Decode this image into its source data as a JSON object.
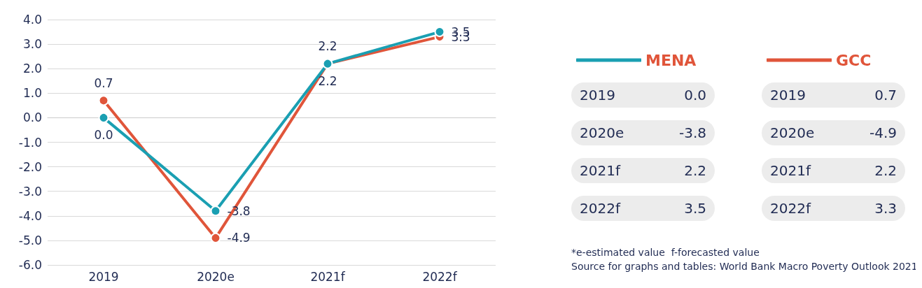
{
  "chart_data": {
    "type": "line",
    "categories": [
      "2019",
      "2020e",
      "2021f",
      "2022f"
    ],
    "series": [
      {
        "name": "MENA",
        "color": "#1a9fb2",
        "values": [
          0.0,
          -3.8,
          2.2,
          3.5
        ],
        "value_labels": [
          "0.0",
          "-3.8",
          "2.2",
          "3.5"
        ]
      },
      {
        "name": "GCC",
        "color": "#e0553a",
        "values": [
          0.7,
          -4.9,
          2.2,
          3.3
        ],
        "value_labels": [
          "0.7",
          "-4.9",
          "2.2",
          "3.3"
        ]
      }
    ],
    "ylim": [
      -6,
      4
    ],
    "yticks": [
      {
        "value": -6,
        "label": "-6.0"
      },
      {
        "value": -5,
        "label": "-5.0"
      },
      {
        "value": -4,
        "label": "-4.0"
      },
      {
        "value": -3,
        "label": "-3.0"
      },
      {
        "value": -2,
        "label": "-2.0"
      },
      {
        "value": -1,
        "label": "-1.0"
      },
      {
        "value": 0,
        "label": "0.0"
      },
      {
        "value": 1,
        "label": "1.0"
      },
      {
        "value": 2,
        "label": "2.0"
      },
      {
        "value": 3,
        "label": "3.0"
      },
      {
        "value": 4,
        "label": "4.0"
      }
    ],
    "grid": "y",
    "legend": "right",
    "marker": "circle",
    "line_style": "solid",
    "annotations": [
      "*e-estimated value  f-forecasted value",
      "Source for graphs and tables: World Bank Macro Poverty Outlook 2021"
    ]
  }
}
